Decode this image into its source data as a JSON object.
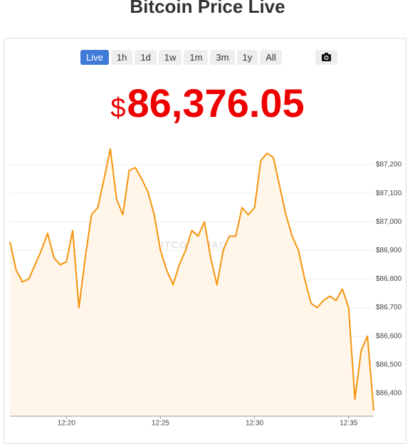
{
  "header": {
    "title": "Bitcoin Price Live"
  },
  "range_buttons": [
    "Live",
    "1h",
    "1d",
    "1w",
    "1m",
    "3m",
    "1y",
    "All"
  ],
  "price": {
    "currency": "$",
    "value": "86,376.05"
  },
  "chart_data": {
    "type": "line",
    "watermark": "BITCOIN MAGAZINE PRO",
    "categories": [
      null,
      null,
      null,
      null,
      null,
      null,
      null,
      null,
      null,
      "12:20",
      null,
      null,
      null,
      null,
      null,
      null,
      null,
      null,
      null,
      null,
      null,
      null,
      null,
      null,
      "12:25",
      null,
      null,
      null,
      null,
      null,
      null,
      null,
      null,
      null,
      null,
      null,
      null,
      null,
      null,
      "12:30",
      null,
      null,
      null,
      null,
      null,
      null,
      null,
      null,
      null,
      null,
      null,
      null,
      null,
      null,
      "12:35",
      null,
      null,
      null,
      null
    ],
    "values": [
      86930,
      86830,
      86790,
      86800,
      86850,
      86900,
      86960,
      86875,
      86850,
      86860,
      86970,
      86700,
      86875,
      87025,
      87050,
      87150,
      87255,
      87080,
      87025,
      87180,
      87190,
      87150,
      87105,
      87025,
      86900,
      86830,
      86780,
      86850,
      86900,
      86970,
      86950,
      87000,
      86875,
      86780,
      86900,
      86950,
      86950,
      87050,
      87025,
      87050,
      87215,
      87240,
      87225,
      87125,
      87025,
      86950,
      86900,
      86800,
      86715,
      86700,
      86725,
      86740,
      86725,
      86765,
      86700,
      86380,
      86550,
      86600,
      86340
    ],
    "color": "#f5940c",
    "fill_color": "#fff5e9",
    "ylim": [
      86320,
      87290
    ],
    "yticks": [
      {
        "value": 86400,
        "label": "$86,400"
      },
      {
        "value": 86500,
        "label": "$86,500"
      },
      {
        "value": 86600,
        "label": "$86,600"
      },
      {
        "value": 86700,
        "label": "$86,700"
      },
      {
        "value": 86800,
        "label": "$86,800"
      },
      {
        "value": 86900,
        "label": "$86,900"
      },
      {
        "value": 87000,
        "label": "$87,000"
      },
      {
        "value": 87100,
        "label": "$87,100"
      },
      {
        "value": 87200,
        "label": "$87,200"
      }
    ],
    "grid": true
  }
}
